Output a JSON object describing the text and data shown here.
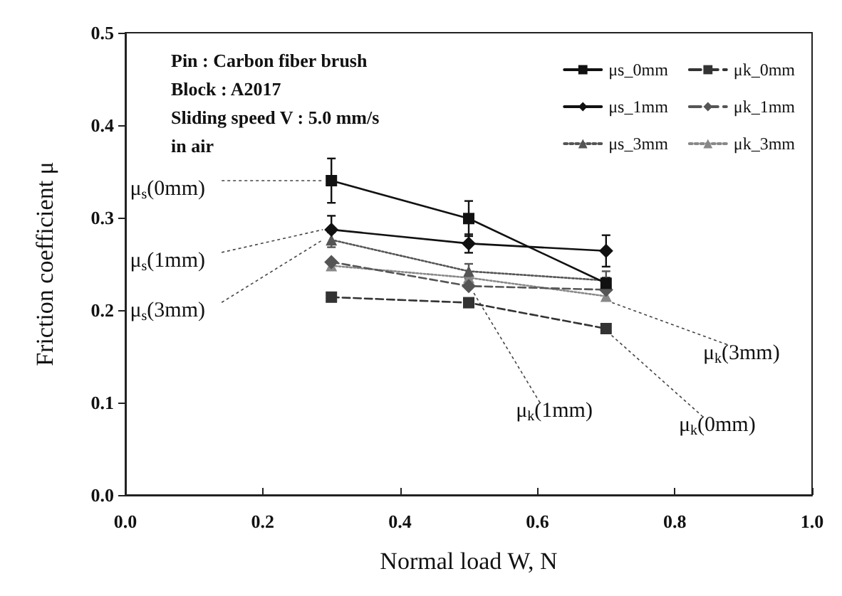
{
  "chart_data": {
    "type": "line",
    "xlabel": "Normal load W, N",
    "ylabel": "Friction coefficient μ",
    "x": [
      0.3,
      0.5,
      0.7
    ],
    "series": [
      {
        "name": "μs_0mm",
        "color": "#111111",
        "marker": "square",
        "line_style": "solid",
        "values": [
          0.34,
          0.299,
          0.229
        ],
        "errors": [
          0.024,
          0.019,
          0.006
        ]
      },
      {
        "name": "μk_0mm",
        "color": "#333333",
        "marker": "square",
        "line_style": "dashed",
        "values": [
          0.214,
          0.208,
          0.18
        ]
      },
      {
        "name": "μs_1mm",
        "color": "#111111",
        "marker": "diamond",
        "line_style": "solid",
        "values": [
          0.287,
          0.272,
          0.264
        ],
        "errors": [
          0.015,
          0.01,
          0.017
        ]
      },
      {
        "name": "μk_1mm",
        "color": "#555555",
        "marker": "diamond",
        "line_style": "dashed",
        "values": [
          0.252,
          0.226,
          0.222
        ]
      },
      {
        "name": "μs_3mm",
        "color": "#555555",
        "marker": "triangle",
        "line_style": "dotted",
        "values": [
          0.276,
          0.242,
          0.232
        ],
        "errors": [
          0.008,
          0.008,
          0.01
        ]
      },
      {
        "name": "μk_3mm",
        "color": "#888888",
        "marker": "triangle",
        "line_style": "dotted",
        "values": [
          0.248,
          0.235,
          0.215
        ]
      }
    ],
    "xlim": [
      0,
      1.0
    ],
    "xticks": [
      "0.0",
      0.2,
      0.4,
      0.6,
      0.8,
      "1.0"
    ],
    "ylim": [
      0,
      0.5
    ],
    "yticks": [
      "0.0",
      0.1,
      0.2,
      0.3,
      0.4,
      0.5
    ],
    "grid": false,
    "legend": "top right",
    "annotations": [
      "Pin : Carbon fiber brush",
      "Block : A2017",
      "Sliding speed V : 5.0 mm/s",
      "in air",
      {
        "text": "μ$_{s}$(0mm)",
        "x": 0.3,
        "y": 0.34
      },
      {
        "text": "μ$_{s}$(1mm)",
        "x": 0.3,
        "y": 0.287
      },
      {
        "text": "μ$_{s}$(3mm)",
        "x": 0.3,
        "y": 0.276
      },
      {
        "text": "μ$_{k}$(1mm)",
        "x": 0.5,
        "y": 0.226
      },
      {
        "text": "μ$_{k}$(3mm)",
        "x": 0.7,
        "y": 0.215
      },
      {
        "text": "μ$_{k}$(0mm)",
        "x": 0.7,
        "y": 0.18
      }
    ]
  }
}
